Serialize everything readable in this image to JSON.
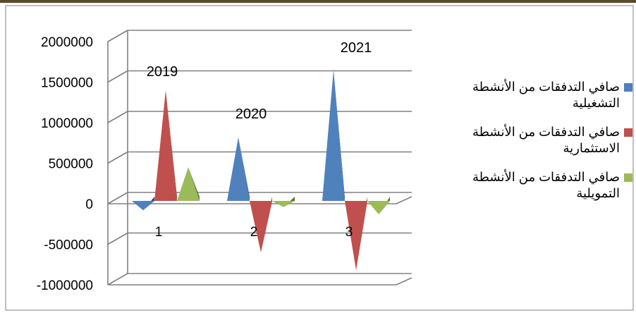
{
  "chart_data": {
    "type": "bar",
    "categories": [
      "1",
      "2",
      "3"
    ],
    "category_annotations": [
      "2019",
      "2020",
      "2021"
    ],
    "series": [
      {
        "name": "صافي التدفقات من الأنشطة التشغيلية",
        "color": "#4f81bd",
        "values": [
          -80000,
          820000,
          1650000
        ]
      },
      {
        "name": "صافي التدفقات من الأنشطة الاستثمارية",
        "color": "#c0504d",
        "values": [
          1400000,
          -600000,
          -820000
        ]
      },
      {
        "name": "صافي التدفقات من الأنشطة التمويلية",
        "color": "#9bbb59",
        "values": [
          450000,
          -40000,
          -130000
        ]
      }
    ],
    "yticks": [
      "2000000",
      "1500000",
      "1000000",
      "500000",
      "0",
      "-500000",
      "-1000000"
    ],
    "ylim": [
      -1000000,
      2000000
    ],
    "grid": true,
    "legend_position": "right"
  }
}
